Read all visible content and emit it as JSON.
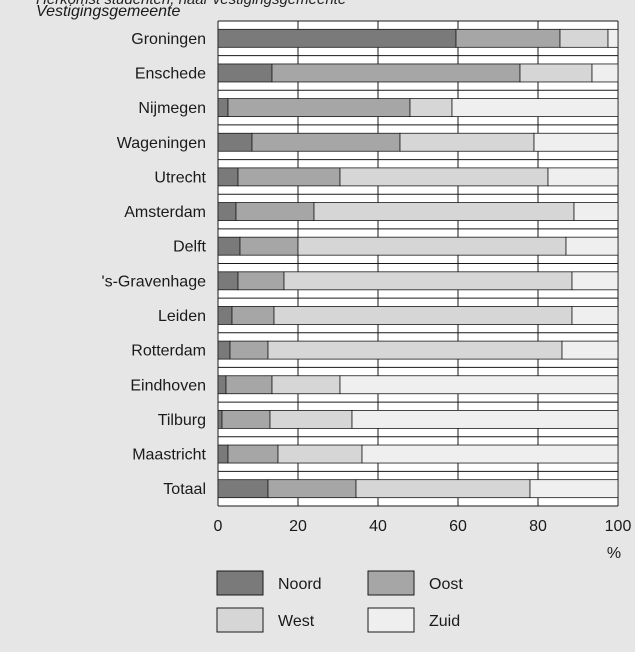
{
  "header_fragment": "Herkomst studenten, naar vestigingsgemeente",
  "chart_data": {
    "type": "bar",
    "orientation": "horizontal",
    "stacked": true,
    "category_label": "Vestigingsgemeente",
    "categories": [
      "Groningen",
      "Enschede",
      "Nijmegen",
      "Wageningen",
      "Utrecht",
      "Amsterdam",
      "Delft",
      "'s-Gravenhage",
      "Leiden",
      "Rotterdam",
      "Eindhoven",
      "Tilburg",
      "Maastricht",
      "Totaal"
    ],
    "series": [
      {
        "name": "Noord",
        "color": "#7a7a7a",
        "values": [
          59.5,
          13.5,
          2.5,
          8.5,
          5,
          4.5,
          5.5,
          5,
          3.5,
          3,
          2,
          1,
          2.5,
          12.5
        ]
      },
      {
        "name": "Oost",
        "color": "#a6a6a6",
        "values": [
          26,
          62,
          45.5,
          37,
          25.5,
          19.5,
          14.5,
          11.5,
          10.5,
          9.5,
          11.5,
          12,
          12.5,
          22
        ]
      },
      {
        "name": "West",
        "color": "#d6d6d6",
        "values": [
          12,
          18,
          10.5,
          33.5,
          52,
          65,
          67,
          72,
          74.5,
          73.5,
          17,
          20.5,
          21,
          43.5
        ]
      },
      {
        "name": "Zuid",
        "color": "#efefef",
        "values": [
          2.5,
          6.5,
          41.5,
          21,
          17.5,
          11,
          13,
          11.5,
          11.5,
          14,
          69.5,
          66.5,
          64,
          22
        ]
      }
    ],
    "xlim": [
      0,
      100
    ],
    "xticks": [
      "0",
      "20",
      "40",
      "60",
      "80",
      "100"
    ],
    "xunit": "%",
    "grid": true,
    "legend_position": "bottom"
  }
}
